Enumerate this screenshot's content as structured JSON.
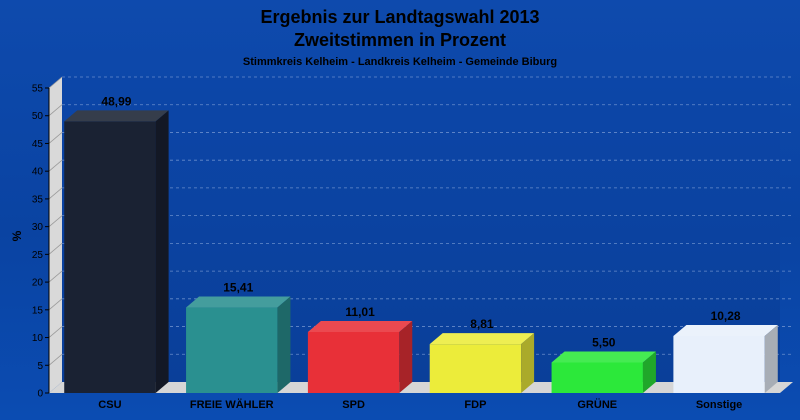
{
  "chart_data": {
    "type": "bar",
    "title": "Ergebnis zur Landtagswahl 2013",
    "subtitle": "Zweitstimmen in Prozent",
    "subsubtitle": "Stimmkreis Kelheim - Landkreis Kelheim - Gemeinde Biburg",
    "xlabel": "",
    "ylabel": "%",
    "ylim": [
      0,
      55
    ],
    "yticks": [
      "0",
      "5",
      "10",
      "15",
      "20",
      "25",
      "30",
      "35",
      "40",
      "45",
      "50",
      "55"
    ],
    "grid": true,
    "categories": [
      "CSU",
      "FREIE WÄHLER",
      "SPD",
      "FDP",
      "GRÜNE",
      "Sonstige"
    ],
    "values": [
      48.99,
      15.41,
      11.01,
      8.81,
      5.5,
      10.28
    ],
    "value_labels": [
      "48,99",
      "15,41",
      "11,01",
      "8,81",
      "5,50",
      "10,28"
    ],
    "colors": [
      "#1a2233",
      "#2a9090",
      "#e83038",
      "#ecec3a",
      "#2ce83a",
      "#e8f0fb"
    ]
  }
}
